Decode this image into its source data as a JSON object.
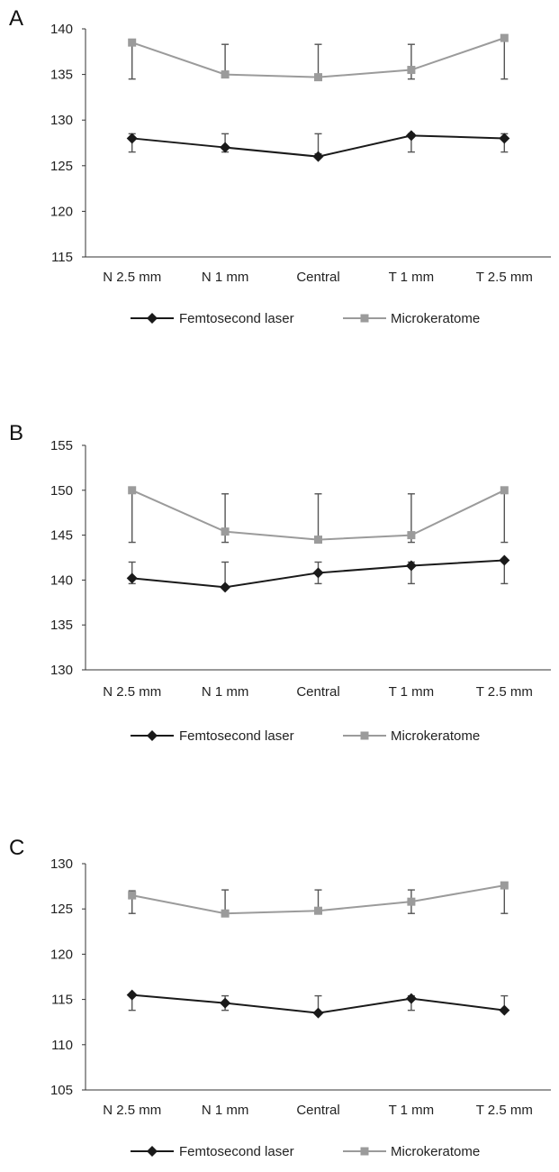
{
  "chart_data": [
    {
      "panel": "A",
      "type": "line",
      "categories": [
        "N 2.5 mm",
        "N 1 mm",
        "Central",
        "T 1 mm",
        "T 2.5 mm"
      ],
      "ylim": [
        115,
        140
      ],
      "yticks": [
        115,
        120,
        125,
        130,
        135,
        140
      ],
      "grid": false,
      "legend_position": "bottom",
      "series": [
        {
          "name": "Femtosecond laser",
          "color": "#1a1a1a",
          "marker": "diamond",
          "values": [
            128,
            127,
            126,
            128.3,
            128
          ],
          "err_low": [
            126.5,
            126.5,
            126.3,
            126.5,
            126.5
          ],
          "err_high": [
            128.5,
            128.5,
            128.5,
            128.5,
            128.5
          ]
        },
        {
          "name": "Microkeratome",
          "color": "#9b9b9b",
          "marker": "square",
          "values": [
            138.5,
            135,
            134.7,
            135.5,
            139
          ],
          "err_low": [
            134.5,
            135,
            134.7,
            134.5,
            134.5
          ],
          "err_high": [
            138.5,
            138.3,
            138.3,
            138.3,
            139
          ]
        }
      ]
    },
    {
      "panel": "B",
      "type": "line",
      "categories": [
        "N 2.5 mm",
        "N 1 mm",
        "Central",
        "T 1 mm",
        "T 2.5 mm"
      ],
      "ylim": [
        130,
        155
      ],
      "yticks": [
        130,
        135,
        140,
        145,
        150,
        155
      ],
      "grid": false,
      "legend_position": "bottom",
      "series": [
        {
          "name": "Femtosecond laser",
          "color": "#1a1a1a",
          "marker": "diamond",
          "values": [
            140.2,
            139.2,
            140.8,
            141.6,
            142.2
          ],
          "err_low": [
            139.6,
            139.2,
            139.6,
            139.6,
            139.6
          ],
          "err_high": [
            142,
            142,
            142,
            142,
            142.2
          ]
        },
        {
          "name": "Microkeratome",
          "color": "#9b9b9b",
          "marker": "square",
          "values": [
            150,
            145.4,
            144.5,
            145,
            150
          ],
          "err_low": [
            144.2,
            144.2,
            144.2,
            144.2,
            144.2
          ],
          "err_high": [
            150,
            149.6,
            149.6,
            149.6,
            150
          ]
        }
      ]
    },
    {
      "panel": "C",
      "type": "line",
      "categories": [
        "N 2.5 mm",
        "N 1 mm",
        "Central",
        "T 1 mm",
        "T 2.5 mm"
      ],
      "ylim": [
        105,
        130
      ],
      "yticks": [
        105,
        110,
        115,
        120,
        125,
        130
      ],
      "grid": false,
      "legend_position": "bottom",
      "series": [
        {
          "name": "Femtosecond laser",
          "color": "#1a1a1a",
          "marker": "diamond",
          "values": [
            115.5,
            114.6,
            113.5,
            115.1,
            113.8
          ],
          "err_low": [
            113.8,
            113.8,
            113.5,
            113.8,
            113.8
          ],
          "err_high": [
            115.5,
            115.4,
            115.4,
            115.4,
            115.4
          ]
        },
        {
          "name": "Microkeratome",
          "color": "#9b9b9b",
          "marker": "square",
          "values": [
            126.5,
            124.5,
            124.8,
            125.8,
            127.6
          ],
          "err_low": [
            124.5,
            124.5,
            124.5,
            124.5,
            124.5
          ],
          "err_high": [
            127,
            127.1,
            127.1,
            127.1,
            127.6
          ]
        }
      ]
    }
  ]
}
